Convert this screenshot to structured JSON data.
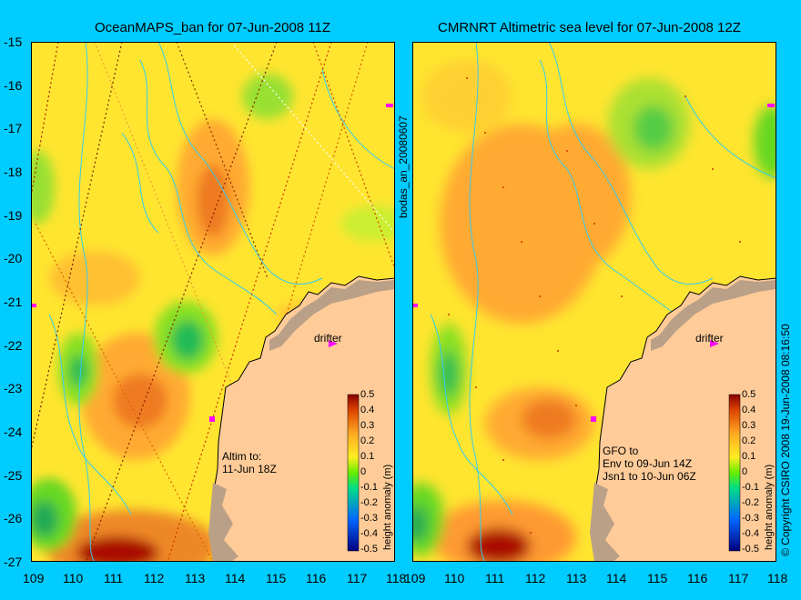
{
  "left_panel": {
    "title": "OceanMAPS_ban for 07-Jun-2008 11Z",
    "note": "Altim to:\n11-Jun 18Z",
    "drifter_label": "drifter",
    "colorbar_label": "height anomaly (m)"
  },
  "right_panel": {
    "title": "CMRNRT Altimetric sea level  for 07-Jun-2008 12Z",
    "note": "GFO to\nEnv to 09-Jun 14Z\nJsn1 to 10-Jun 06Z",
    "drifter_label": "drifter",
    "colorbar_label": "height anomaly (m)"
  },
  "side_label": "bodas_an_20080607",
  "copyright": "© Copyright CSIRO 2008   19-Jun-2008 08:16:50",
  "y_ticks": [
    "-15",
    "-16",
    "-17",
    "-18",
    "-19",
    "-20",
    "-21",
    "-22",
    "-23",
    "-24",
    "-25",
    "-26",
    "-27"
  ],
  "x_ticks": [
    "109",
    "110",
    "111",
    "112",
    "113",
    "114",
    "115",
    "116",
    "117",
    "118"
  ],
  "colorbar_ticks": [
    "0.5",
    "0.4",
    "0.3",
    "0.2",
    "0.1",
    "0",
    "-0.1",
    "-0.2",
    "-0.3",
    "-0.4",
    "-0.5"
  ],
  "colors": {
    "background": "#00ccff",
    "land": "#ffcc99",
    "field_base": "#ffe830",
    "contour": "#33ccee",
    "drifter": "#ff00ff"
  }
}
